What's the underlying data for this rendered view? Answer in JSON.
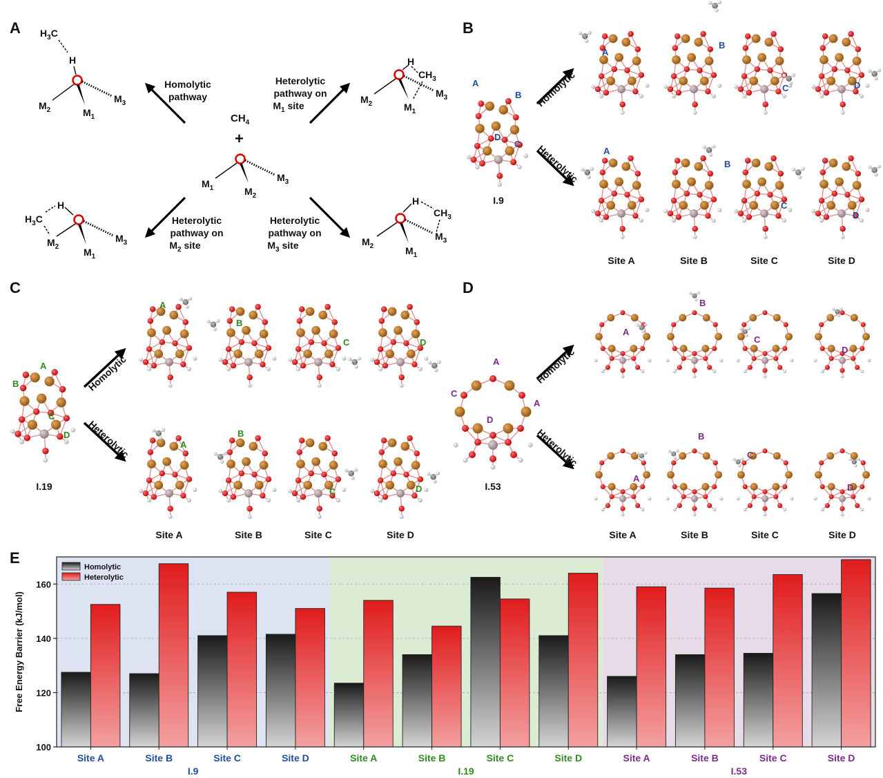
{
  "panels": {
    "a": "A",
    "b": "B",
    "c": "C",
    "d": "D",
    "e": "E"
  },
  "panel_a": {
    "center_reactant": "CH",
    "center_reactant_sub": "4",
    "plus": "+",
    "homolytic": [
      "Homolytic",
      "pathway"
    ],
    "hetero_m1": [
      "Heterolytic",
      "pathway on",
      "M",
      "1",
      " site"
    ],
    "hetero_m2": [
      "Heterolytic",
      "pathway on",
      "M",
      "2",
      " site"
    ],
    "hetero_m3": [
      "Heterolytic",
      "pathway on",
      "M",
      "3",
      " site"
    ],
    "atom_o": "O",
    "atom_h": "H",
    "atom_m": "M",
    "methyl_h3c": [
      "H",
      "3",
      "C"
    ],
    "methyl_ch3": [
      "CH",
      "3"
    ],
    "subs": [
      "1",
      "2",
      "3"
    ]
  },
  "panel_b": {
    "cluster": "I.9",
    "site_letters": [
      "A",
      "B",
      "C",
      "D"
    ],
    "row_labels": [
      "Homolytic",
      "Heterolytic"
    ],
    "site_labels": [
      "Site A",
      "Site B",
      "Site C",
      "Site D"
    ],
    "color": "#1f4e9e"
  },
  "panel_c": {
    "cluster": "I.19",
    "site_letters": [
      "A",
      "B",
      "C",
      "D"
    ],
    "row_labels": [
      "Homolytic",
      "Heterolytic"
    ],
    "site_labels": [
      "Site A",
      "Site B",
      "Site C",
      "Site D"
    ],
    "color": "#2e8b1e"
  },
  "panel_d": {
    "cluster": "I.53",
    "site_letters": [
      "A",
      "B",
      "C",
      "D"
    ],
    "row_labels": [
      "Homolytic",
      "Heterolytic"
    ],
    "site_labels": [
      "Site A",
      "Site B",
      "Site C",
      "Site D"
    ],
    "color": "#7b2a8a"
  },
  "atom_colors": {
    "metal": "#b8741a",
    "oxygen": "#e01010",
    "core": "#b4a2a6",
    "hydrogen": "#eeeeee",
    "carbon": "#8a8a8a",
    "bond": "#e08a8a"
  },
  "chart_data": {
    "type": "bar",
    "title": "",
    "ylabel": "Free Energy Barrier (kJ/mol)",
    "ylim": [
      100,
      170
    ],
    "yticks": [
      100,
      120,
      140,
      160
    ],
    "grid": "horizontal dashed",
    "legend_position": "top-left",
    "categories": [
      "Site A",
      "Site B",
      "Site C",
      "Site D",
      "Site A",
      "Site B",
      "Site C",
      "Site D",
      "Site A",
      "Site B",
      "Site C",
      "Site D"
    ],
    "groups": [
      {
        "name": "I.9",
        "color": "#1f4e9e",
        "background": "#dde3f0"
      },
      {
        "name": "I.19",
        "color": "#2e8b1e",
        "background": "#dcecd4"
      },
      {
        "name": "I.53",
        "color": "#7b2a8a",
        "background": "#e8dbe8"
      }
    ],
    "series": [
      {
        "name": "Homolytic",
        "values": [
          127.5,
          127,
          141,
          141.5,
          123.5,
          134,
          162.5,
          141,
          126,
          134,
          134.5,
          156.5
        ]
      },
      {
        "name": "Heterolytic",
        "values": [
          152.5,
          167.5,
          157,
          151,
          154,
          144.5,
          154.5,
          164,
          159,
          158.5,
          163.5,
          169
        ]
      }
    ]
  }
}
